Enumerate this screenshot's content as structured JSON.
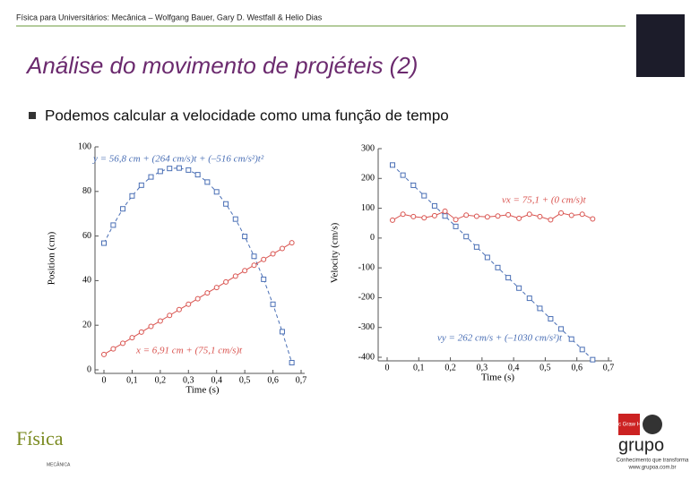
{
  "header": "Física para Universitários: Mecânica – Wolfgang Bauer, Gary D. Westfall & Helio Dias",
  "title": "Análise do movimento de projéteis (2)",
  "bullet": "Podemos calcular a velocidade como uma função de tempo",
  "logos": {
    "left": "Física",
    "left_sub": "MECÂNICA",
    "publisher": "grupo",
    "slogan": "Conhecimento que transforma",
    "url": "www.grupoa.com.br",
    "mcgraw": "Mc Graw Hill"
  },
  "chart_data": [
    {
      "type": "scatter",
      "xlabel": "Time (s)",
      "ylabel": "Position (cm)",
      "x": [
        0,
        0.033,
        0.067,
        0.1,
        0.133,
        0.167,
        0.2,
        0.233,
        0.267,
        0.3,
        0.333,
        0.367,
        0.4,
        0.433,
        0.467,
        0.5,
        0.533,
        0.567,
        0.6,
        0.633,
        0.667
      ],
      "series": [
        {
          "color": "#4a6fb5",
          "marker": "square",
          "values": [
            56.8,
            64.9,
            72.2,
            78.0,
            82.8,
            86.5,
            89.0,
            90.3,
            90.5,
            89.6,
            87.5,
            84.2,
            79.8,
            74.4,
            67.6,
            59.8,
            50.9,
            40.6,
            29.4,
            17.1,
            3.2
          ]
        },
        {
          "color": "#d9534f",
          "marker": "circle",
          "values": [
            6.9,
            9.4,
            11.9,
            14.4,
            16.9,
            19.5,
            21.9,
            24.4,
            27.0,
            29.4,
            31.9,
            34.5,
            36.9,
            39.4,
            42.0,
            44.5,
            46.9,
            49.5,
            52.0,
            54.4,
            57.0
          ]
        }
      ],
      "annotations": [
        {
          "text": "y = 56,8 cm + (264 cm/s)t + (–516 cm/s²)t²",
          "color": "#4a6fb5"
        },
        {
          "text": "x = 6,91 cm + (75,1 cm/s)t",
          "color": "#d9534f"
        }
      ],
      "xlim": [
        0,
        0.7
      ],
      "xticks": [
        0,
        {
          "value": 0.1,
          "label": "0,1"
        },
        {
          "value": 0.2,
          "label": "0,2"
        },
        {
          "value": 0.3,
          "label": "0,3"
        },
        {
          "value": 0.4,
          "label": "0,4"
        },
        {
          "value": 0.5,
          "label": "0,5"
        },
        {
          "value": 0.6,
          "label": "0,6"
        },
        {
          "value": 0.7,
          "label": "0,7"
        }
      ],
      "ylim": [
        0,
        100
      ],
      "yticks": [
        0,
        20,
        40,
        60,
        80,
        100
      ]
    },
    {
      "type": "scatter",
      "xlabel": "Time (s)",
      "ylabel": "Velocity (cm/s)",
      "x": [
        0.017,
        0.05,
        0.083,
        0.117,
        0.15,
        0.183,
        0.217,
        0.25,
        0.283,
        0.317,
        0.35,
        0.383,
        0.417,
        0.45,
        0.483,
        0.517,
        0.55,
        0.583,
        0.617,
        0.65
      ],
      "series": [
        {
          "color": "#4a6fb5",
          "marker": "square",
          "values": [
            245,
            211,
            177,
            142,
            108,
            74,
            39,
            5,
            -30,
            -65,
            -99,
            -133,
            -168,
            -202,
            -236,
            -271,
            -305,
            -339,
            -374,
            -408
          ]
        },
        {
          "color": "#d9534f",
          "marker": "circle",
          "values": [
            60,
            80,
            72,
            68,
            75,
            90,
            62,
            77,
            73,
            71,
            74,
            78,
            66,
            80,
            72,
            61,
            84,
            76,
            80,
            64
          ]
        }
      ],
      "annotations": [
        {
          "text": "vx = 75,1 + (0 cm/s)t",
          "color": "#d9534f"
        },
        {
          "text": "vy = 262 cm/s + (–1030 cm/s²)t",
          "color": "#4a6fb5"
        }
      ],
      "xlim": [
        0,
        0.7
      ],
      "xticks": [
        0,
        {
          "value": 0.1,
          "label": "0,1"
        },
        {
          "value": 0.2,
          "label": "0,2"
        },
        {
          "value": 0.3,
          "label": "0,3"
        },
        {
          "value": 0.4,
          "label": "0,4"
        },
        {
          "value": 0.5,
          "label": "0,5"
        },
        {
          "value": 0.6,
          "label": "0,6"
        },
        {
          "value": 0.7,
          "label": "0,7"
        }
      ],
      "ylim": [
        -400,
        300
      ],
      "yticks": [
        -400,
        -300,
        -200,
        -100,
        0,
        100,
        200,
        300
      ]
    }
  ]
}
